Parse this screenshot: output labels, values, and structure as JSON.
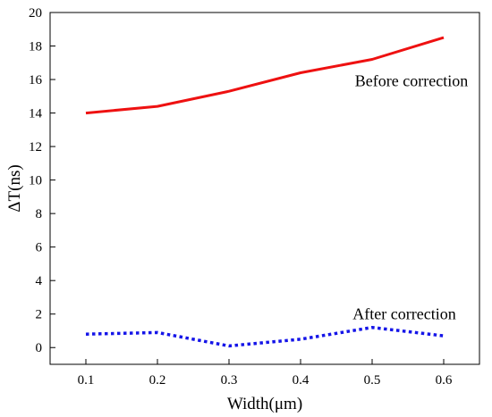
{
  "chart_data": {
    "type": "line",
    "xlabel": "Width(μm)",
    "ylabel": "ΔT(ns)",
    "xlim": [
      0.05,
      0.65
    ],
    "ylim": [
      -1,
      20
    ],
    "x_ticks": [
      0.1,
      0.2,
      0.3,
      0.4,
      0.5,
      0.6
    ],
    "x_tick_labels": [
      "0.1",
      "0.2",
      "0.3",
      "0.4",
      "0.5",
      "0.6"
    ],
    "y_ticks": [
      0,
      2,
      4,
      6,
      8,
      10,
      12,
      14,
      16,
      18,
      20
    ],
    "y_tick_labels": [
      "0",
      "2",
      "4",
      "6",
      "8",
      "10",
      "12",
      "14",
      "16",
      "18",
      "20"
    ],
    "grid": false,
    "series": [
      {
        "x": [
          0.1,
          0.2,
          0.3,
          0.4,
          0.5,
          0.6
        ],
        "values": [
          14.0,
          14.4,
          15.3,
          16.4,
          17.2,
          18.5
        ],
        "color": "#ee1111",
        "style": "solid"
      },
      {
        "x": [
          0.1,
          0.2,
          0.3,
          0.4,
          0.5,
          0.6
        ],
        "values": [
          0.8,
          0.9,
          0.1,
          0.5,
          1.2,
          0.7
        ],
        "color": "#1515e8",
        "style": "dotted"
      }
    ],
    "annotations": [
      {
        "text": "Before correction",
        "x": 0.555,
        "y": 15.6
      },
      {
        "text": "After correction",
        "x": 0.545,
        "y": 1.7
      }
    ]
  }
}
